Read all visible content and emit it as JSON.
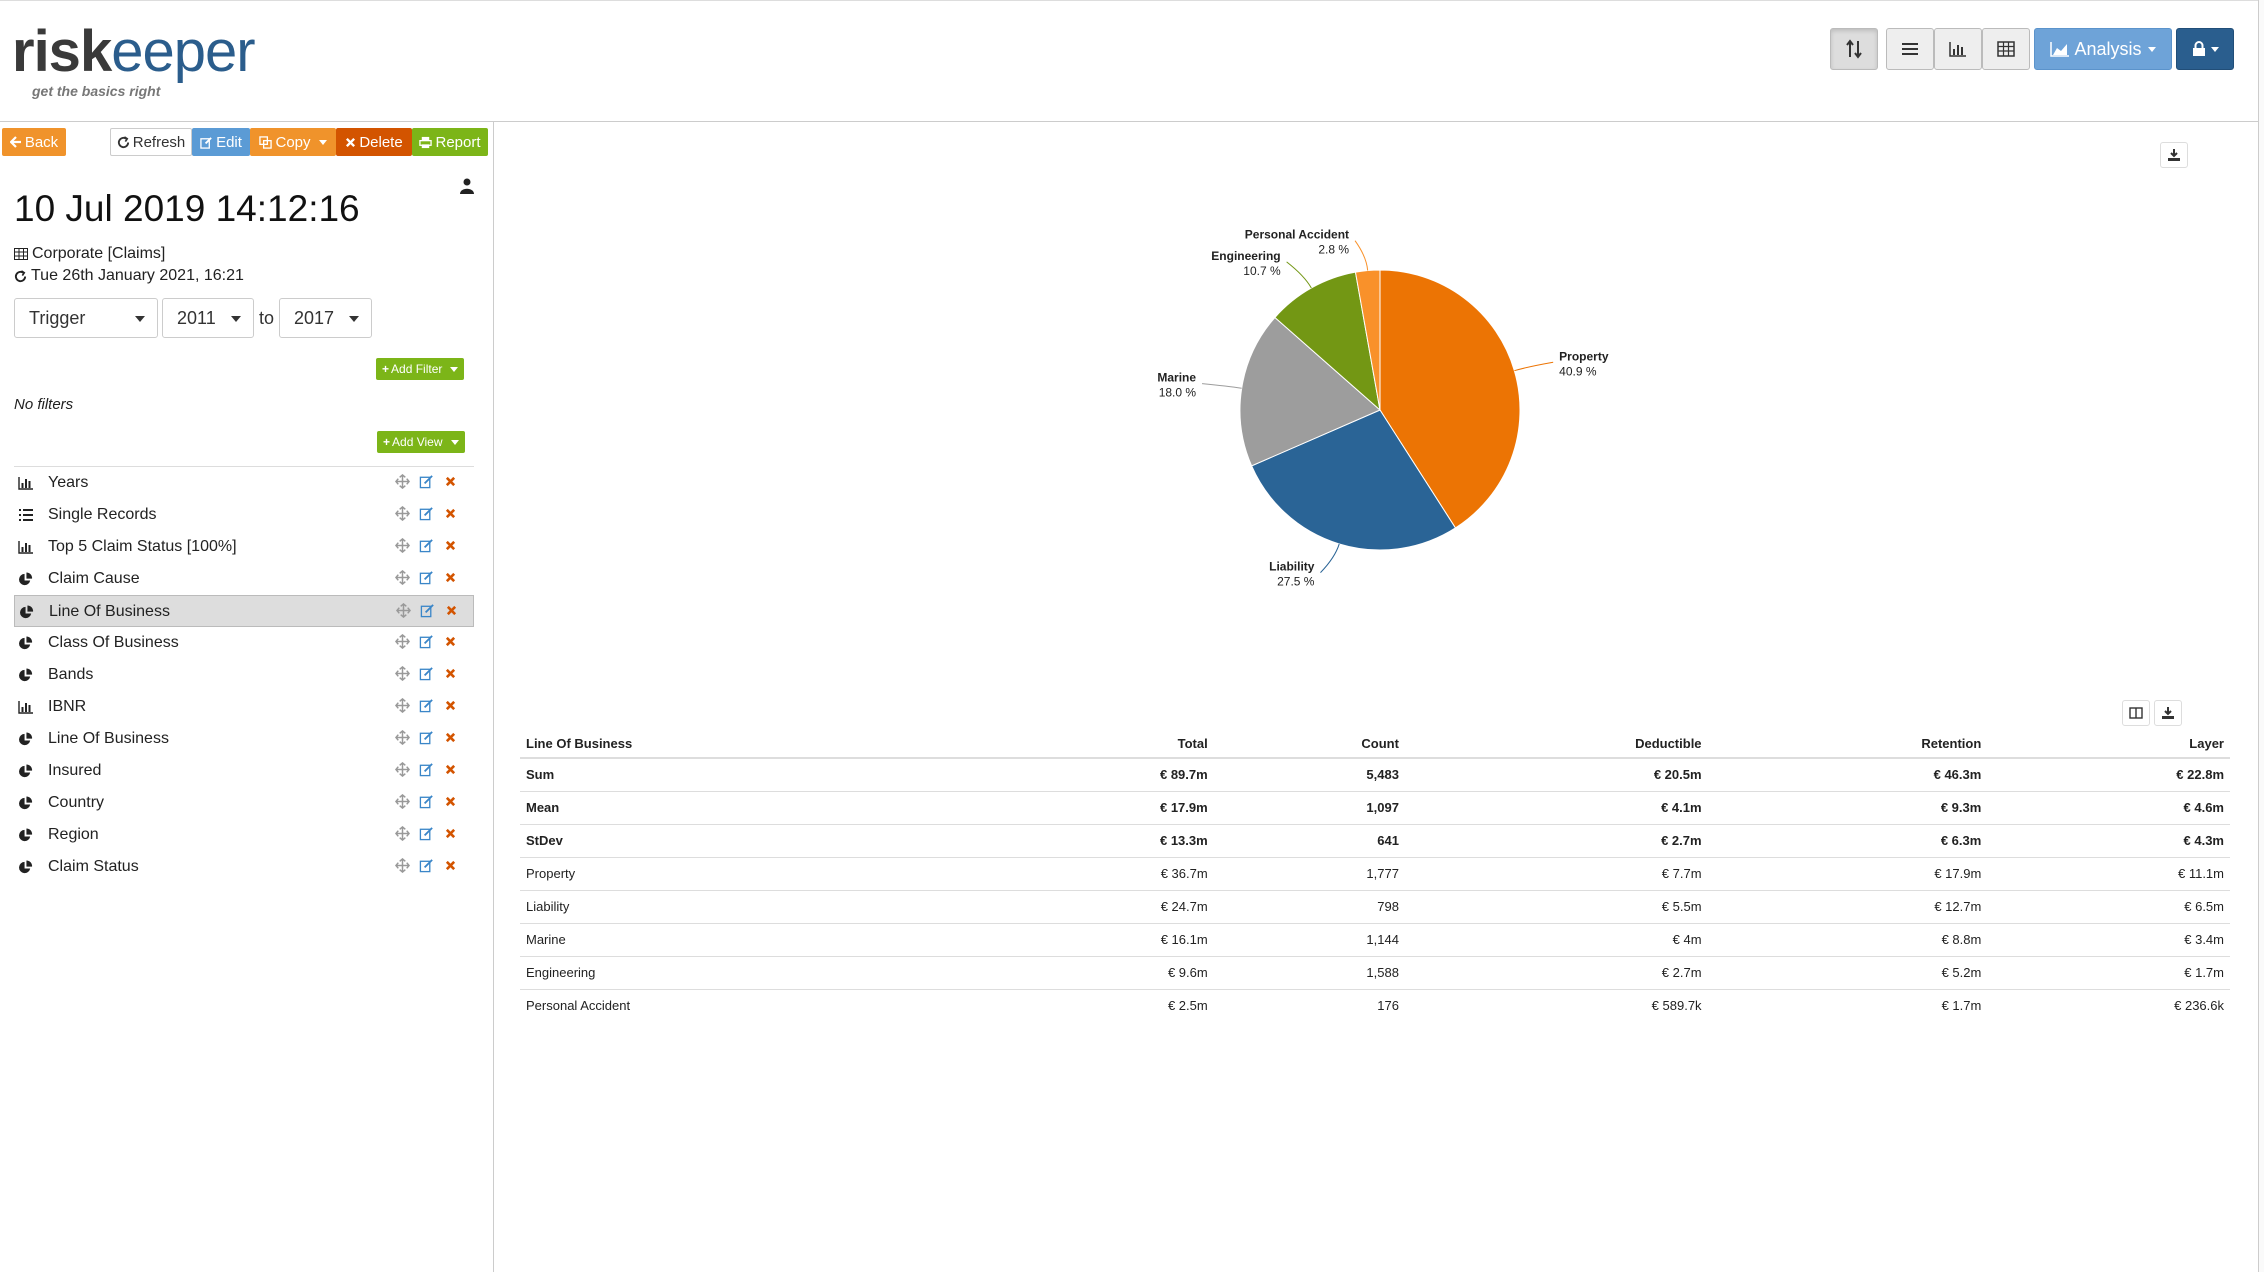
{
  "header": {
    "logo": {
      "part1": "risk",
      "part2": "eeper",
      "tagline": "get the basics right"
    },
    "buttons": {
      "analysis_label": "Analysis"
    }
  },
  "toolbar": {
    "back": "Back",
    "refresh": "Refresh",
    "edit": "Edit",
    "copy": "Copy",
    "delete": "Delete",
    "report": "Report"
  },
  "report": {
    "timestamp": "10 Jul 2019 14:12:16",
    "dataset": "Corporate [Claims]",
    "updated": "Tue 26th January 2021, 16:21",
    "trigger": "Trigger",
    "year_from": "2011",
    "to_label": "to",
    "year_to": "2017",
    "add_filter": "Add Filter",
    "no_filters": "No filters",
    "add_view": "Add View"
  },
  "views": [
    {
      "label": "Years",
      "icon": "bar-chart-icon"
    },
    {
      "label": "Single Records",
      "icon": "list-icon"
    },
    {
      "label": "Top 5 Claim Status [100%]",
      "icon": "bar-chart-icon"
    },
    {
      "label": "Claim Cause",
      "icon": "pie-chart-icon"
    },
    {
      "label": "Line Of Business",
      "icon": "pie-chart-icon",
      "selected": true
    },
    {
      "label": "Class Of Business",
      "icon": "pie-chart-icon"
    },
    {
      "label": "Bands",
      "icon": "pie-chart-icon"
    },
    {
      "label": "IBNR",
      "icon": "bar-chart-icon"
    },
    {
      "label": "Line Of Business",
      "icon": "pie-chart-icon"
    },
    {
      "label": "Insured",
      "icon": "pie-chart-icon"
    },
    {
      "label": "Country",
      "icon": "pie-chart-icon"
    },
    {
      "label": "Region",
      "icon": "pie-chart-icon"
    },
    {
      "label": "Claim Status",
      "icon": "pie-chart-icon"
    }
  ],
  "chart_data": {
    "type": "pie",
    "labels": [
      "Property",
      "Liability",
      "Marine",
      "Engineering",
      "Personal Accident"
    ],
    "values": [
      40.9,
      27.5,
      18.0,
      10.7,
      2.8
    ],
    "value_labels": [
      "40.9 %",
      "27.5 %",
      "18.0 %",
      "10.7 %",
      "2.8 %"
    ],
    "colors": [
      "#ec7404",
      "#2a6496",
      "#9d9d9d",
      "#739714",
      "#f9912a"
    ]
  },
  "table": {
    "columns": [
      "Line Of Business",
      "Total",
      "Count",
      "Deductible",
      "Retention",
      "Layer"
    ],
    "aggregate_rows": [
      [
        "Sum",
        "€ 89.7m",
        "5,483",
        "€ 20.5m",
        "€ 46.3m",
        "€ 22.8m"
      ],
      [
        "Mean",
        "€ 17.9m",
        "1,097",
        "€ 4.1m",
        "€ 9.3m",
        "€ 4.6m"
      ],
      [
        "StDev",
        "€ 13.3m",
        "641",
        "€ 2.7m",
        "€ 6.3m",
        "€ 4.3m"
      ]
    ],
    "rows": [
      [
        "Property",
        "€ 36.7m",
        "1,777",
        "€ 7.7m",
        "€ 17.9m",
        "€ 11.1m"
      ],
      [
        "Liability",
        "€ 24.7m",
        "798",
        "€ 5.5m",
        "€ 12.7m",
        "€ 6.5m"
      ],
      [
        "Marine",
        "€ 16.1m",
        "1,144",
        "€ 4m",
        "€ 8.8m",
        "€ 3.4m"
      ],
      [
        "Engineering",
        "€ 9.6m",
        "1,588",
        "€ 2.7m",
        "€ 5.2m",
        "€ 1.7m"
      ],
      [
        "Personal Accident",
        "€ 2.5m",
        "176",
        "€ 589.7k",
        "€ 1.7m",
        "€ 236.6k"
      ]
    ]
  }
}
